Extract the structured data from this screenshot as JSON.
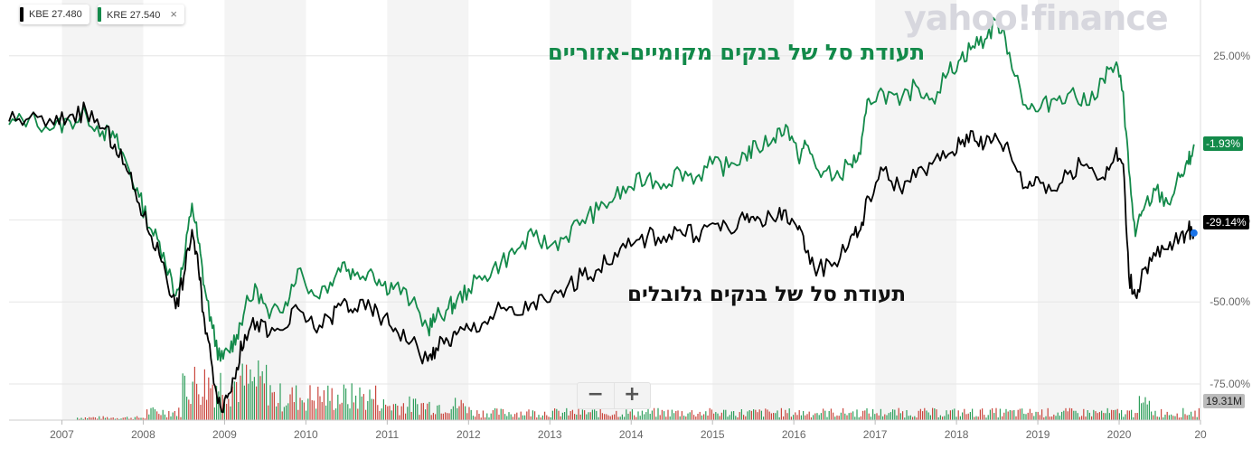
{
  "legend": [
    {
      "symbol": "KBE",
      "value": "27.480",
      "color": "#000000"
    },
    {
      "symbol": "KRE",
      "value": "27.540",
      "color": "#138a4a",
      "close": "×"
    }
  ],
  "watermark": "yahoo!finance",
  "annotations": {
    "kre": "תעודת סל של בנקים מקומיים-אזוריים",
    "kbe": "תעודת סל של בנקים גלובלים"
  },
  "zoom": {
    "minus": "−",
    "plus": "+"
  },
  "tags": {
    "kre": "-1.93%",
    "kbe": "-29.14%",
    "volume": "19.31M"
  },
  "colors": {
    "kre": "#138a4a",
    "kbe": "#000000",
    "vol_up": "#2e9e5b",
    "vol_down": "#c9463d",
    "band": "#f4f4f4"
  },
  "chart_data": {
    "type": "line",
    "x_tick_labels": [
      "2007",
      "2008",
      "2009",
      "2010",
      "2011",
      "2012",
      "2013",
      "2014",
      "2015",
      "2016",
      "2017",
      "2018",
      "2019",
      "2020",
      "20"
    ],
    "y_tick_labels": [
      "25.00%",
      "-25.00%",
      "-50.00%",
      "-75.00%"
    ],
    "y_ticks": [
      25,
      -25,
      -50,
      -75
    ],
    "ylim": [
      -86,
      42
    ],
    "xlim": [
      2006.35,
      2021.0
    ],
    "series": [
      {
        "name": "KRE",
        "color": "#138a4a",
        "x": [
          2006.35,
          2006.6,
          2006.9,
          2007.1,
          2007.3,
          2007.5,
          2007.65,
          2007.8,
          2007.95,
          2008.1,
          2008.25,
          2008.4,
          2008.5,
          2008.6,
          2008.68,
          2008.75,
          2008.85,
          2008.95,
          2009.05,
          2009.15,
          2009.25,
          2009.4,
          2009.55,
          2009.75,
          2009.9,
          2010.1,
          2010.3,
          2010.45,
          2010.6,
          2010.8,
          2010.95,
          2011.1,
          2011.3,
          2011.5,
          2011.6,
          2011.75,
          2011.85,
          2012.0,
          2012.2,
          2012.4,
          2012.6,
          2012.8,
          2013.0,
          2013.2,
          2013.4,
          2013.6,
          2013.8,
          2014.0,
          2014.2,
          2014.4,
          2014.6,
          2014.8,
          2015.0,
          2015.2,
          2015.4,
          2015.55,
          2015.75,
          2015.9,
          2016.05,
          2016.15,
          2016.3,
          2016.5,
          2016.7,
          2016.82,
          2016.92,
          2017.1,
          2017.3,
          2017.5,
          2017.7,
          2017.9,
          2018.05,
          2018.2,
          2018.35,
          2018.5,
          2018.65,
          2018.85,
          2019.0,
          2019.2,
          2019.4,
          2019.6,
          2019.8,
          2019.95,
          2020.05,
          2020.12,
          2020.2,
          2020.3,
          2020.45,
          2020.6,
          2020.75,
          2020.85,
          2020.92
        ],
        "y": [
          4,
          6,
          3,
          5,
          7,
          2,
          0,
          -8,
          -18,
          -28,
          -35,
          -48,
          -38,
          -20,
          -32,
          -45,
          -58,
          -68,
          -65,
          -60,
          -52,
          -46,
          -55,
          -50,
          -40,
          -48,
          -44,
          -38,
          -42,
          -40,
          -45,
          -45,
          -50,
          -58,
          -55,
          -52,
          -50,
          -46,
          -42,
          -38,
          -34,
          -30,
          -33,
          -30,
          -25,
          -22,
          -18,
          -15,
          -12,
          -14,
          -10,
          -12,
          -8,
          -9,
          -5,
          -3,
          0,
          4,
          -6,
          -2,
          -10,
          -12,
          -8,
          -5,
          12,
          14,
          10,
          16,
          12,
          20,
          24,
          28,
          30,
          36,
          26,
          10,
          8,
          12,
          14,
          10,
          18,
          22,
          14,
          -10,
          -30,
          -22,
          -16,
          -20,
          -12,
          -8,
          -2
        ]
      },
      {
        "name": "KBE",
        "color": "#000000",
        "x": [
          2006.35,
          2006.6,
          2006.9,
          2007.1,
          2007.3,
          2007.5,
          2007.65,
          2007.8,
          2007.95,
          2008.1,
          2008.25,
          2008.4,
          2008.5,
          2008.6,
          2008.68,
          2008.75,
          2008.85,
          2008.95,
          2009.05,
          2009.15,
          2009.25,
          2009.4,
          2009.55,
          2009.75,
          2009.9,
          2010.1,
          2010.3,
          2010.45,
          2010.6,
          2010.8,
          2010.95,
          2011.1,
          2011.3,
          2011.5,
          2011.6,
          2011.75,
          2011.85,
          2012.0,
          2012.2,
          2012.4,
          2012.6,
          2012.8,
          2013.0,
          2013.2,
          2013.4,
          2013.6,
          2013.8,
          2014.0,
          2014.2,
          2014.4,
          2014.6,
          2014.8,
          2015.0,
          2015.2,
          2015.4,
          2015.55,
          2015.75,
          2015.9,
          2016.05,
          2016.15,
          2016.3,
          2016.5,
          2016.7,
          2016.82,
          2016.92,
          2017.1,
          2017.3,
          2017.5,
          2017.7,
          2017.9,
          2018.05,
          2018.2,
          2018.35,
          2018.5,
          2018.65,
          2018.85,
          2019.0,
          2019.2,
          2019.4,
          2019.6,
          2019.8,
          2019.95,
          2020.05,
          2020.12,
          2020.2,
          2020.3,
          2020.45,
          2020.6,
          2020.75,
          2020.85,
          2020.92
        ],
        "y": [
          5,
          6,
          4,
          7,
          8,
          3,
          -2,
          -10,
          -20,
          -30,
          -38,
          -52,
          -42,
          -28,
          -40,
          -55,
          -70,
          -82,
          -78,
          -70,
          -60,
          -56,
          -60,
          -58,
          -52,
          -58,
          -55,
          -50,
          -52,
          -52,
          -55,
          -58,
          -62,
          -68,
          -64,
          -62,
          -60,
          -58,
          -56,
          -52,
          -54,
          -50,
          -50,
          -46,
          -42,
          -40,
          -35,
          -33,
          -30,
          -30,
          -28,
          -30,
          -26,
          -28,
          -25,
          -24,
          -25,
          -22,
          -28,
          -35,
          -40,
          -38,
          -30,
          -28,
          -18,
          -10,
          -15,
          -12,
          -8,
          -5,
          -2,
          2,
          -2,
          0,
          -4,
          -15,
          -12,
          -16,
          -10,
          -8,
          -12,
          -5,
          -8,
          -42,
          -48,
          -40,
          -36,
          -34,
          -30,
          -28,
          -29
        ]
      }
    ]
  }
}
